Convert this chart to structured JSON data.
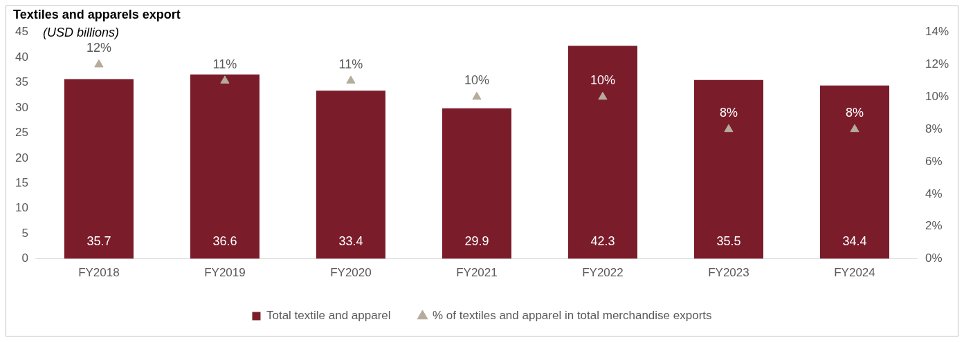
{
  "chart_data": {
    "type": "bar",
    "title": "Textiles and apparels export",
    "annotations": [
      "(USD billions)"
    ],
    "categories": [
      "FY2018",
      "FY2019",
      "FY2020",
      "FY2021",
      "FY2022",
      "FY2023",
      "FY2024"
    ],
    "series": [
      {
        "name": "Total textile and apparel",
        "color": "#7b1c2a",
        "values": [
          35.7,
          36.6,
          33.4,
          29.9,
          42.3,
          35.5,
          34.4
        ],
        "value_labels": [
          "35.7",
          "36.6",
          "33.4",
          "29.9",
          "42.3",
          "35.5",
          "34.4"
        ]
      },
      {
        "name": "% of textiles and apparel in total merchandise exports",
        "type": "scatter",
        "axis": "y2",
        "marker": "triangle",
        "color": "#b5ac9c",
        "values": [
          12,
          11,
          11,
          10,
          10,
          8,
          8
        ],
        "value_labels": [
          "12%",
          "11%",
          "11%",
          "10%",
          "10%",
          "8%",
          "8%"
        ]
      }
    ],
    "ylim": [
      0,
      45
    ],
    "yticks": [
      0,
      5,
      10,
      15,
      20,
      25,
      30,
      35,
      40,
      45
    ],
    "y2lim": [
      0,
      14
    ],
    "y2ticks": [
      {
        "value": 0,
        "label": "0%"
      },
      {
        "value": 2,
        "label": "2%"
      },
      {
        "value": 4,
        "label": "4%"
      },
      {
        "value": 6,
        "label": "6%"
      },
      {
        "value": 8,
        "label": "8%"
      },
      {
        "value": 10,
        "label": "10%"
      },
      {
        "value": 12,
        "label": "12%"
      },
      {
        "value": 14,
        "label": "14%"
      }
    ],
    "grid": false,
    "legend": "bottom"
  }
}
